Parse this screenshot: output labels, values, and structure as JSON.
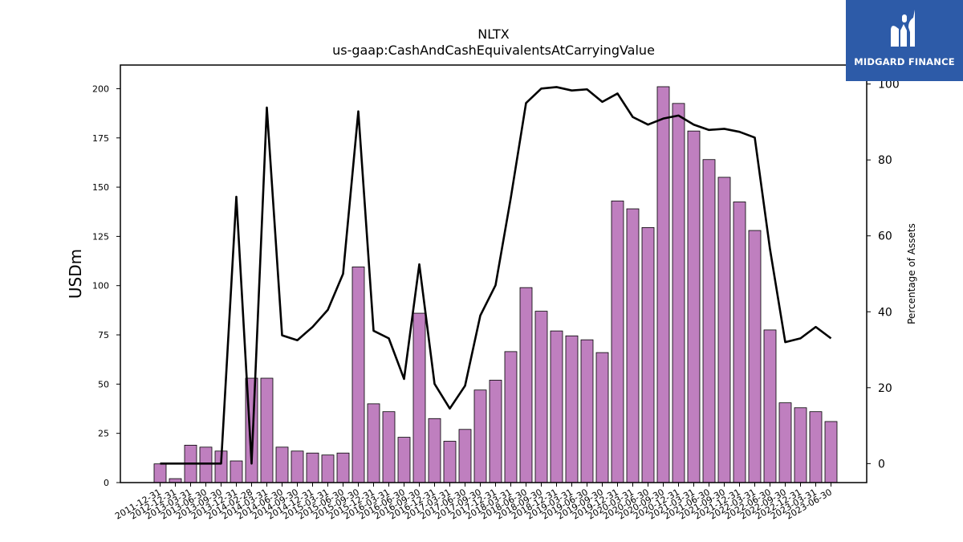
{
  "chart_data": {
    "type": "bar+line",
    "title": "NLTX",
    "subtitle": "us-gaap:CashAndCashEquivalentsAtCarryingValue",
    "ylabel": "USDm",
    "y2label": "Percentage of Assets",
    "ylim": [
      0,
      212
    ],
    "y2lim": [
      -5,
      105
    ],
    "yticks": [
      0,
      25,
      50,
      75,
      100,
      125,
      150,
      175,
      200
    ],
    "y2ticks": [
      0,
      20,
      40,
      60,
      80,
      100
    ],
    "bar_color": "#bf7fbf",
    "line_color": "#000000",
    "categories": [
      "2011-12-31",
      "2012-12-31",
      "2013-03-31",
      "2013-06-30",
      "2013-09-30",
      "2013-12-31",
      "2014-02-28",
      "2014-03-31",
      "2014-06-30",
      "2014-09-30",
      "2014-12-31",
      "2015-03-31",
      "2015-06-30",
      "2015-09-30",
      "2015-12-31",
      "2016-03-31",
      "2016-06-30",
      "2016-09-30",
      "2016-12-31",
      "2017-03-31",
      "2017-06-30",
      "2017-09-30",
      "2017-12-31",
      "2018-03-31",
      "2018-06-30",
      "2018-09-30",
      "2018-12-31",
      "2019-03-31",
      "2019-06-30",
      "2019-09-30",
      "2019-12-31",
      "2020-03-31",
      "2020-06-30",
      "2020-09-30",
      "2020-12-31",
      "2021-03-31",
      "2021-06-30",
      "2021-09-30",
      "2021-12-31",
      "2022-03-31",
      "2022-06-30",
      "2022-09-30",
      "2022-12-31",
      "2023-03-31",
      "2023-06-30"
    ],
    "series": [
      {
        "axis": "left",
        "kind": "bar",
        "values": [
          9.5,
          2.0,
          19.0,
          18.0,
          16.0,
          11.0,
          53.0,
          53.0,
          18.0,
          16.0,
          15.0,
          14.0,
          15.0,
          109.5,
          40.0,
          36.0,
          23.0,
          86.0,
          32.5,
          21.0,
          27.0,
          47.0,
          52.0,
          66.5,
          99.0,
          87.0,
          77.0,
          74.5,
          72.5,
          66.0,
          143.0,
          139.0,
          129.5,
          201.0,
          192.5,
          178.5,
          164.0,
          155.0,
          142.5,
          128.0,
          77.5,
          40.5,
          38.0,
          36.0,
          31.0
        ]
      },
      {
        "axis": "right",
        "kind": "line",
        "values": [
          0,
          0,
          0,
          0,
          0,
          70.3,
          0,
          93.8,
          33.8,
          32.5,
          36.0,
          40.5,
          50.0,
          92.8,
          35.0,
          33.0,
          22.3,
          52.5,
          21.0,
          14.5,
          20.5,
          39.0,
          47.0,
          70.0,
          95.0,
          98.8,
          99.2,
          98.3,
          98.6,
          95.3,
          97.5,
          91.3,
          89.3,
          90.9,
          91.7,
          89.3,
          87.9,
          88.2,
          87.4,
          85.9,
          56.5,
          32.0,
          33.0,
          36.0,
          33.0
        ]
      }
    ]
  },
  "logo": {
    "text": "MIDGARD FINANCE",
    "background": "#2d5ba8",
    "icon": "midgard-logo-icon"
  }
}
